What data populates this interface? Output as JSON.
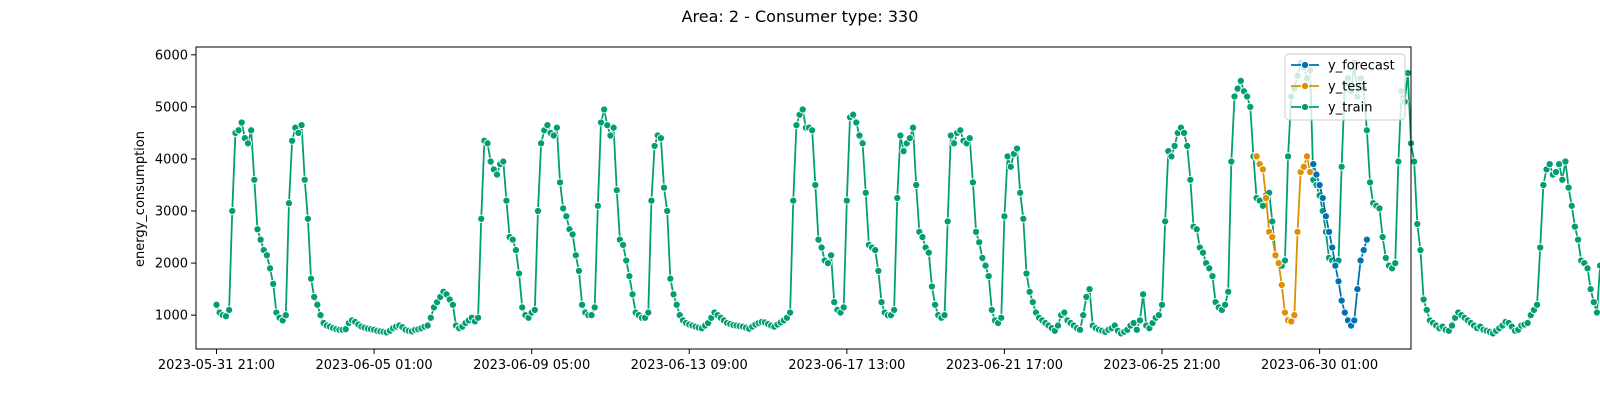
{
  "chart_data": {
    "type": "line",
    "title": "Area: 2 - Consumer type: 330",
    "xlabel": "",
    "ylabel": "energy_consumption",
    "x_unit": "timestamp (hourly)",
    "x_start": "2023-05-31 21:00",
    "x_step_hours": 2,
    "xlim_hours_from_start": [
      -13,
      758
    ],
    "xticks": [
      "2023-05-31 21:00",
      "2023-06-05 01:00",
      "2023-06-09 05:00",
      "2023-06-13 09:00",
      "2023-06-17 13:00",
      "2023-06-21 17:00",
      "2023-06-25 21:00",
      "2023-06-30 01:00"
    ],
    "ylim": [
      350,
      6150
    ],
    "yticks": [
      1000,
      2000,
      3000,
      4000,
      5000,
      6000
    ],
    "grid": false,
    "legend_position": "upper right",
    "series": [
      {
        "name": "y_forecast",
        "color": "#0072b2",
        "start_index": 348,
        "values": [
          3900,
          3700,
          3500,
          3250,
          2900,
          2600,
          2300,
          1950,
          1650,
          1280,
          1050,
          900,
          800,
          900,
          1500,
          2050,
          2250,
          2450
        ]
      },
      {
        "name": "y_test",
        "color": "#de8f05",
        "start_index": 330,
        "values": [
          4050,
          3900,
          3800,
          3250,
          2600,
          2500,
          2150,
          2000,
          1580,
          1050,
          900,
          880,
          1000,
          2600,
          3750,
          3850,
          4050,
          3750
        ]
      },
      {
        "name": "y_train",
        "color": "#029e73",
        "start_index": 0,
        "values": [
          1200,
          1050,
          1000,
          980,
          1100,
          3000,
          4500,
          4550,
          4700,
          4400,
          4300,
          4550,
          3600,
          2650,
          2450,
          2250,
          2150,
          1900,
          1600,
          1050,
          950,
          900,
          1000,
          3150,
          4350,
          4600,
          4500,
          4650,
          3600,
          2850,
          1700,
          1350,
          1200,
          1000,
          850,
          800,
          780,
          750,
          730,
          720,
          720,
          730,
          850,
          900,
          870,
          820,
          780,
          760,
          740,
          730,
          720,
          700,
          690,
          680,
          670,
          700,
          750,
          780,
          800,
          770,
          720,
          700,
          690,
          720,
          730,
          750,
          780,
          800,
          950,
          1150,
          1250,
          1350,
          1450,
          1400,
          1300,
          1200,
          800,
          750,
          780,
          850,
          900,
          950,
          880,
          950,
          2850,
          4350,
          4300,
          3950,
          3800,
          3700,
          3900,
          3950,
          3200,
          2500,
          2450,
          2250,
          1800,
          1150,
          1000,
          950,
          1050,
          1100,
          3000,
          4300,
          4550,
          4650,
          4500,
          4450,
          4600,
          3550,
          3050,
          2900,
          2650,
          2550,
          2150,
          1850,
          1200,
          1050,
          1000,
          1000,
          1150,
          3100,
          4700,
          4950,
          4650,
          4450,
          4600,
          3400,
          2450,
          2350,
          2050,
          1750,
          1400,
          1050,
          1000,
          950,
          950,
          1050,
          3200,
          4250,
          4450,
          4400,
          3450,
          3000,
          1700,
          1400,
          1200,
          1000,
          900,
          850,
          820,
          800,
          780,
          760,
          750,
          800,
          850,
          950,
          1050,
          1000,
          950,
          900,
          850,
          830,
          810,
          800,
          790,
          780,
          760,
          740,
          780,
          820,
          850,
          870,
          860,
          830,
          800,
          780,
          820,
          860,
          900,
          950,
          1050,
          3200,
          4650,
          4850,
          4950,
          4600,
          4600,
          4550,
          3500,
          2450,
          2300,
          2050,
          2000,
          2150,
          1250,
          1100,
          1050,
          1150,
          3200,
          4800,
          4850,
          4700,
          4450,
          4300,
          3350,
          2350,
          2300,
          2250,
          1850,
          1250,
          1050,
          1000,
          1000,
          1100,
          3250,
          4450,
          4150,
          4300,
          4400,
          4600,
          3500,
          2600,
          2500,
          2300,
          2200,
          1550,
          1200,
          1000,
          950,
          1000,
          2800,
          4450,
          4300,
          4500,
          4550,
          4350,
          4300,
          4400,
          3550,
          2600,
          2400,
          2100,
          1950,
          1750,
          1100,
          900,
          850,
          950,
          2900,
          4050,
          3850,
          4100,
          4200,
          3350,
          2850,
          1800,
          1450,
          1250,
          1050,
          950,
          900,
          850,
          800,
          750,
          700,
          800,
          1000,
          1050,
          900,
          850,
          800,
          750,
          720,
          1000,
          1350,
          1500,
          800,
          750,
          720,
          700,
          680,
          720,
          750,
          800,
          700,
          650,
          680,
          720,
          800,
          850,
          720,
          900,
          1400,
          800,
          750,
          850,
          950,
          1000,
          1200,
          2800,
          4150,
          4050,
          4250,
          4500,
          4600,
          4500,
          4250,
          3600,
          2700,
          2650,
          2300,
          2200,
          2000,
          1900,
          1750,
          1250,
          1150,
          1100,
          1200,
          1450,
          3950,
          5200,
          5350,
          5500,
          5300,
          5200,
          5000,
          4050,
          3250,
          3200,
          3100,
          3300,
          3350,
          2800,
          2150,
          2000,
          1950,
          2050,
          4050,
          5200,
          5350,
          5600,
          5850,
          5750,
          5550,
          5700,
          3600,
          3500,
          3300,
          3000,
          2600,
          2100,
          2050,
          2000,
          2050,
          3850,
          5450,
          5550,
          5300,
          5850,
          5200,
          5550,
          5350,
          4550,
          3550,
          3150,
          3100,
          3050,
          2500,
          2100,
          1950,
          1900,
          2000,
          3950,
          5300,
          5100,
          5650,
          4300,
          3950,
          2750,
          2250,
          1300,
          1100,
          900,
          850,
          800,
          750,
          780,
          720,
          700,
          800,
          950,
          1050,
          1000,
          950,
          900,
          850,
          800,
          750,
          780,
          720,
          700,
          680,
          650,
          700,
          750,
          800,
          870,
          850,
          780,
          700,
          720,
          800,
          820,
          850,
          1000,
          1100,
          1200,
          2300,
          3500,
          3800,
          3900,
          3700,
          3750,
          3900,
          3600,
          3950,
          3450,
          3100,
          2700,
          2450,
          2050,
          2000,
          1900,
          1500,
          1250,
          1050,
          1950,
          1000,
          2700,
          3900,
          4050,
          4300,
          4200,
          4000,
          3950,
          3650,
          2950,
          2450,
          2300,
          2000,
          1700,
          1500,
          1200,
          1100,
          1050,
          1100,
          2700,
          3700,
          3850,
          4050,
          4300,
          3650,
          3700,
          3400,
          3950,
          2750,
          2600,
          2350,
          2250,
          2300,
          1400,
          1100,
          1050,
          1000,
          1050,
          2750,
          3900,
          4100,
          3850,
          4050
        ]
      }
    ]
  }
}
